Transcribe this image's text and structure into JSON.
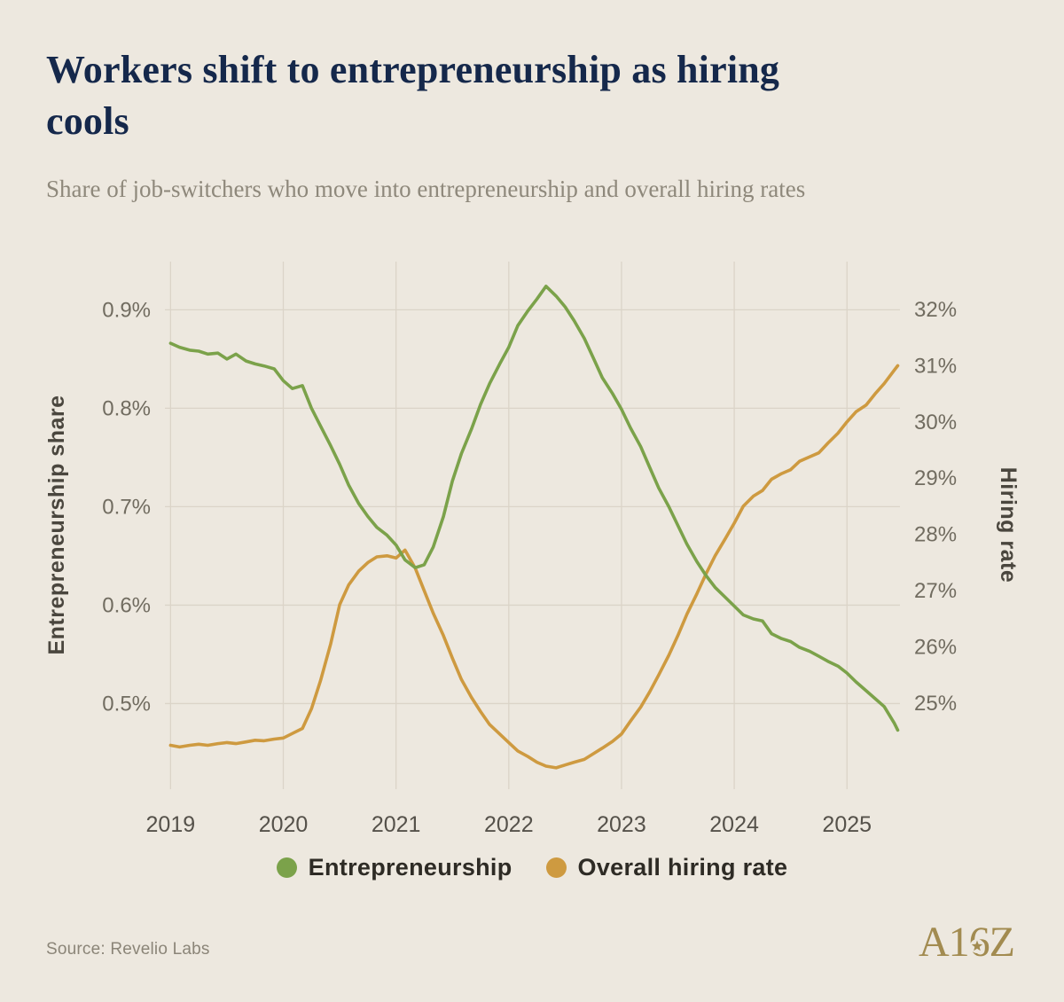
{
  "page": {
    "background": "#EDE8DF"
  },
  "header": {
    "title": "Workers shift to entrepreneurship as hiring cools",
    "subtitle": "Share of job-switchers who move into entrepreneurship and overall hiring rates"
  },
  "legend": {
    "items": [
      {
        "label": "Entrepreneurship",
        "color": "#7BA24A"
      },
      {
        "label": "Overall hiring rate",
        "color": "#CE9A40"
      }
    ]
  },
  "footer": {
    "source": "Source: Revelio Labs",
    "logo_text": "A16Z"
  },
  "chart_data": {
    "type": "line",
    "title": "Workers shift to entrepreneurship as hiring cools",
    "subtitle": "Share of job-switchers who move into entrepreneurship and overall hiring rates",
    "grid": true,
    "gridline_color": "#DBD4C8",
    "legend_position": "bottom",
    "x_axis": {
      "ticks": [
        2019,
        2020,
        2021,
        2022,
        2023,
        2024,
        2025
      ],
      "range": [
        2018.95,
        2025.47
      ]
    },
    "y_left": {
      "label": "Entrepreneurship share",
      "tick_labels": [
        "0.9%",
        "0.8%",
        "0.7%",
        "0.6%",
        "0.5%"
      ],
      "tick_values": [
        0.9,
        0.8,
        0.7,
        0.6,
        0.5
      ],
      "range": [
        0.413,
        0.949
      ]
    },
    "y_right": {
      "label": "Hiring rate",
      "tick_labels": [
        "32%",
        "31%",
        "30%",
        "29%",
        "28%",
        "27%",
        "26%",
        "25%"
      ],
      "tick_values": [
        32,
        31,
        30,
        29,
        28,
        27,
        26,
        25
      ],
      "range": [
        23.47,
        32.85
      ]
    },
    "series": [
      {
        "name": "Entrepreneurship",
        "axis": "left",
        "color": "#7BA24A",
        "points": [
          [
            2019.0,
            0.866
          ],
          [
            2019.08,
            0.862
          ],
          [
            2019.17,
            0.859
          ],
          [
            2019.25,
            0.858
          ],
          [
            2019.33,
            0.855
          ],
          [
            2019.42,
            0.856
          ],
          [
            2019.5,
            0.85
          ],
          [
            2019.58,
            0.855
          ],
          [
            2019.67,
            0.848
          ],
          [
            2019.75,
            0.845
          ],
          [
            2019.83,
            0.843
          ],
          [
            2019.92,
            0.84
          ],
          [
            2020.0,
            0.828
          ],
          [
            2020.08,
            0.82
          ],
          [
            2020.17,
            0.823
          ],
          [
            2020.25,
            0.8
          ],
          [
            2020.33,
            0.782
          ],
          [
            2020.42,
            0.762
          ],
          [
            2020.5,
            0.743
          ],
          [
            2020.58,
            0.722
          ],
          [
            2020.67,
            0.703
          ],
          [
            2020.75,
            0.69
          ],
          [
            2020.83,
            0.679
          ],
          [
            2020.92,
            0.671
          ],
          [
            2021.0,
            0.661
          ],
          [
            2021.08,
            0.646
          ],
          [
            2021.17,
            0.638
          ],
          [
            2021.25,
            0.641
          ],
          [
            2021.33,
            0.659
          ],
          [
            2021.42,
            0.69
          ],
          [
            2021.5,
            0.726
          ],
          [
            2021.58,
            0.754
          ],
          [
            2021.67,
            0.779
          ],
          [
            2021.75,
            0.804
          ],
          [
            2021.83,
            0.825
          ],
          [
            2021.92,
            0.845
          ],
          [
            2022.0,
            0.862
          ],
          [
            2022.08,
            0.884
          ],
          [
            2022.17,
            0.899
          ],
          [
            2022.25,
            0.911
          ],
          [
            2022.33,
            0.924
          ],
          [
            2022.42,
            0.914
          ],
          [
            2022.5,
            0.903
          ],
          [
            2022.58,
            0.889
          ],
          [
            2022.67,
            0.871
          ],
          [
            2022.75,
            0.851
          ],
          [
            2022.83,
            0.831
          ],
          [
            2022.92,
            0.815
          ],
          [
            2023.0,
            0.799
          ],
          [
            2023.08,
            0.78
          ],
          [
            2023.17,
            0.761
          ],
          [
            2023.25,
            0.74
          ],
          [
            2023.33,
            0.719
          ],
          [
            2023.42,
            0.7
          ],
          [
            2023.5,
            0.681
          ],
          [
            2023.58,
            0.662
          ],
          [
            2023.67,
            0.644
          ],
          [
            2023.75,
            0.63
          ],
          [
            2023.83,
            0.618
          ],
          [
            2023.92,
            0.608
          ],
          [
            2024.0,
            0.599
          ],
          [
            2024.08,
            0.59
          ],
          [
            2024.17,
            0.586
          ],
          [
            2024.25,
            0.584
          ],
          [
            2024.33,
            0.571
          ],
          [
            2024.42,
            0.566
          ],
          [
            2024.5,
            0.563
          ],
          [
            2024.58,
            0.557
          ],
          [
            2024.67,
            0.553
          ],
          [
            2024.75,
            0.548
          ],
          [
            2024.83,
            0.543
          ],
          [
            2024.92,
            0.538
          ],
          [
            2025.0,
            0.531
          ],
          [
            2025.08,
            0.522
          ],
          [
            2025.17,
            0.513
          ],
          [
            2025.25,
            0.505
          ],
          [
            2025.33,
            0.497
          ],
          [
            2025.42,
            0.48
          ],
          [
            2025.45,
            0.473
          ]
        ]
      },
      {
        "name": "Overall hiring rate",
        "axis": "right",
        "color": "#CE9A40",
        "points": [
          [
            2019.0,
            24.25
          ],
          [
            2019.08,
            24.22
          ],
          [
            2019.17,
            24.25
          ],
          [
            2019.25,
            24.27
          ],
          [
            2019.33,
            24.25
          ],
          [
            2019.42,
            24.28
          ],
          [
            2019.5,
            24.3
          ],
          [
            2019.58,
            24.28
          ],
          [
            2019.67,
            24.31
          ],
          [
            2019.75,
            24.34
          ],
          [
            2019.83,
            24.33
          ],
          [
            2019.92,
            24.36
          ],
          [
            2020.0,
            24.38
          ],
          [
            2020.08,
            24.46
          ],
          [
            2020.17,
            24.55
          ],
          [
            2020.25,
            24.9
          ],
          [
            2020.33,
            25.4
          ],
          [
            2020.42,
            26.05
          ],
          [
            2020.5,
            26.75
          ],
          [
            2020.58,
            27.1
          ],
          [
            2020.67,
            27.35
          ],
          [
            2020.75,
            27.5
          ],
          [
            2020.83,
            27.6
          ],
          [
            2020.92,
            27.62
          ],
          [
            2021.0,
            27.58
          ],
          [
            2021.08,
            27.72
          ],
          [
            2021.17,
            27.4
          ],
          [
            2021.25,
            27.0
          ],
          [
            2021.33,
            26.6
          ],
          [
            2021.42,
            26.2
          ],
          [
            2021.5,
            25.8
          ],
          [
            2021.58,
            25.42
          ],
          [
            2021.67,
            25.1
          ],
          [
            2021.75,
            24.85
          ],
          [
            2021.83,
            24.62
          ],
          [
            2021.92,
            24.45
          ],
          [
            2022.0,
            24.3
          ],
          [
            2022.08,
            24.15
          ],
          [
            2022.17,
            24.05
          ],
          [
            2022.25,
            23.95
          ],
          [
            2022.33,
            23.88
          ],
          [
            2022.42,
            23.85
          ],
          [
            2022.5,
            23.9
          ],
          [
            2022.58,
            23.95
          ],
          [
            2022.67,
            24.0
          ],
          [
            2022.75,
            24.1
          ],
          [
            2022.83,
            24.2
          ],
          [
            2022.92,
            24.32
          ],
          [
            2023.0,
            24.45
          ],
          [
            2023.08,
            24.68
          ],
          [
            2023.17,
            24.93
          ],
          [
            2023.25,
            25.2
          ],
          [
            2023.33,
            25.5
          ],
          [
            2023.42,
            25.85
          ],
          [
            2023.5,
            26.2
          ],
          [
            2023.58,
            26.58
          ],
          [
            2023.67,
            26.95
          ],
          [
            2023.75,
            27.3
          ],
          [
            2023.83,
            27.62
          ],
          [
            2023.92,
            27.92
          ],
          [
            2024.0,
            28.2
          ],
          [
            2024.08,
            28.5
          ],
          [
            2024.17,
            28.68
          ],
          [
            2024.25,
            28.78
          ],
          [
            2024.33,
            28.98
          ],
          [
            2024.42,
            29.08
          ],
          [
            2024.5,
            29.15
          ],
          [
            2024.58,
            29.3
          ],
          [
            2024.67,
            29.38
          ],
          [
            2024.75,
            29.45
          ],
          [
            2024.83,
            29.62
          ],
          [
            2024.92,
            29.8
          ],
          [
            2025.0,
            30.0
          ],
          [
            2025.08,
            30.18
          ],
          [
            2025.17,
            30.3
          ],
          [
            2025.25,
            30.5
          ],
          [
            2025.33,
            30.68
          ],
          [
            2025.42,
            30.92
          ],
          [
            2025.45,
            31.0
          ]
        ]
      }
    ]
  }
}
